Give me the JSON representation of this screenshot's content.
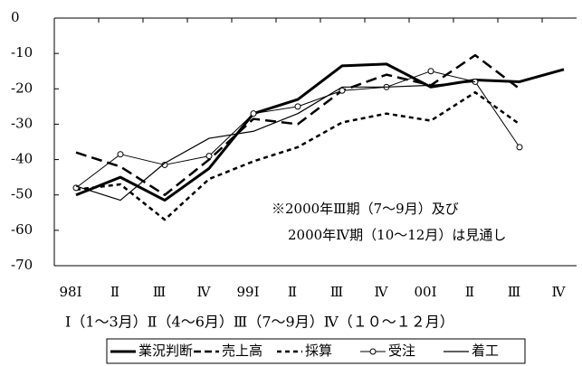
{
  "chart_data": {
    "type": "line",
    "categories": [
      "98Ⅰ",
      "Ⅱ",
      "Ⅲ",
      "Ⅳ",
      "99Ⅰ",
      "Ⅱ",
      "Ⅲ",
      "Ⅳ",
      "00Ⅰ",
      "Ⅱ",
      "Ⅲ",
      "Ⅳ"
    ],
    "series": [
      {
        "name": "業況判断",
        "color": "#000000",
        "style": "thick",
        "values": [
          -50,
          -45,
          -51.5,
          -42.5,
          -27,
          -23,
          -13.5,
          -13,
          -19.5,
          -17.5,
          -18,
          -14.5
        ]
      },
      {
        "name": "売上高",
        "color": "#000000",
        "style": "dashed",
        "values": [
          -38,
          -42,
          -50,
          -40,
          -28.5,
          -30,
          -20.5,
          -16,
          -19,
          -10.5,
          -20,
          null
        ]
      },
      {
        "name": "採算",
        "color": "#000000",
        "style": "dotted",
        "values": [
          -48.5,
          -47,
          -57,
          -45.5,
          -40.5,
          -36.5,
          -29.5,
          -27,
          -29,
          -21,
          -30,
          null
        ]
      },
      {
        "name": "受注",
        "color": "#000000",
        "style": "marker",
        "values": [
          -48,
          -38.5,
          -41.5,
          -39,
          -27,
          -25,
          -20.5,
          -19.5,
          -15,
          -18,
          -36.5,
          null
        ]
      },
      {
        "name": "着工",
        "color": "#000000",
        "style": "thin",
        "values": [
          -47.5,
          -51.5,
          -41,
          -34,
          -32,
          -27,
          -19.5,
          -19.5,
          -19,
          -18,
          null,
          null
        ]
      }
    ],
    "ylim": [
      -70,
      0
    ],
    "yticks": [
      0,
      -10,
      -20,
      -30,
      -40,
      -50,
      -60,
      -70
    ],
    "annotations": [
      "※2000年Ⅲ期（7～9月）及び",
      "2000年Ⅳ期（10～12月）は見通し"
    ],
    "x_note": "Ⅰ（1～3月）Ⅱ（4～6月）Ⅲ（7～9月）Ⅳ（１０～１２月）"
  }
}
